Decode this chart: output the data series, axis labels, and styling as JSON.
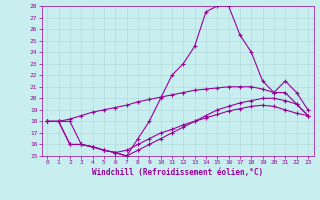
{
  "xlabel": "Windchill (Refroidissement éolien,°C)",
  "xlim": [
    -0.5,
    23.5
  ],
  "ylim": [
    15,
    28
  ],
  "yticks": [
    15,
    16,
    17,
    18,
    19,
    20,
    21,
    22,
    23,
    24,
    25,
    26,
    27,
    28
  ],
  "xticks": [
    0,
    1,
    2,
    3,
    4,
    5,
    6,
    7,
    8,
    9,
    10,
    11,
    12,
    13,
    14,
    15,
    16,
    17,
    18,
    19,
    20,
    21,
    22,
    23
  ],
  "bg_color": "#c8eef0",
  "line_color": "#990099",
  "grid_color": "#b0d8d8",
  "line1_x": [
    0,
    1,
    2,
    3,
    4,
    5,
    6,
    7,
    8,
    9,
    10,
    11,
    12,
    13,
    14,
    15,
    16,
    17,
    18,
    19,
    20,
    21,
    22,
    23
  ],
  "line1_y": [
    18.0,
    18.0,
    18.2,
    18.5,
    18.8,
    19.0,
    19.2,
    19.4,
    19.7,
    19.9,
    20.1,
    20.3,
    20.5,
    20.7,
    20.8,
    20.9,
    21.0,
    21.0,
    21.0,
    20.8,
    20.5,
    20.5,
    19.5,
    18.5
  ],
  "line2_x": [
    0,
    1,
    2,
    3,
    4,
    5,
    6,
    7,
    8,
    9,
    10,
    11,
    12,
    13,
    14,
    15,
    16,
    17,
    18,
    19,
    20,
    21,
    22,
    23
  ],
  "line2_y": [
    18.0,
    18.0,
    18.0,
    16.0,
    15.8,
    15.5,
    15.3,
    15.0,
    16.5,
    18.0,
    20.0,
    22.0,
    23.0,
    24.5,
    27.5,
    28.0,
    28.0,
    25.5,
    24.0,
    21.5,
    20.5,
    21.5,
    20.5,
    19.0
  ],
  "line3_x": [
    0,
    1,
    2,
    3,
    4,
    5,
    6,
    7,
    8,
    9,
    10,
    11,
    12,
    13,
    14,
    15,
    16,
    17,
    18,
    19,
    20,
    21,
    22,
    23
  ],
  "line3_y": [
    18.0,
    18.0,
    16.0,
    16.0,
    15.8,
    15.5,
    15.3,
    15.0,
    15.5,
    16.0,
    16.5,
    17.0,
    17.5,
    18.0,
    18.5,
    19.0,
    19.3,
    19.6,
    19.8,
    20.0,
    20.0,
    19.8,
    19.5,
    18.5
  ],
  "line4_x": [
    0,
    1,
    2,
    3,
    4,
    5,
    6,
    7,
    8,
    9,
    10,
    11,
    12,
    13,
    14,
    15,
    16,
    17,
    18,
    19,
    20,
    21,
    22,
    23
  ],
  "line4_y": [
    18.0,
    18.0,
    16.0,
    16.0,
    15.8,
    15.5,
    15.3,
    15.5,
    16.0,
    16.5,
    17.0,
    17.3,
    17.7,
    18.0,
    18.3,
    18.6,
    18.9,
    19.1,
    19.3,
    19.4,
    19.3,
    19.0,
    18.7,
    18.5
  ]
}
